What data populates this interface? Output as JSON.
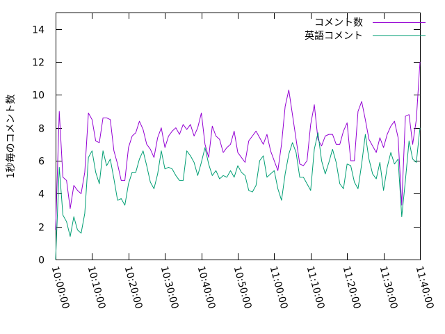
{
  "chart_data": {
    "type": "line",
    "ylabel": "1秒毎のコメント数",
    "ylim": [
      0,
      15
    ],
    "yticks": [
      0,
      2,
      4,
      6,
      8,
      10,
      12,
      14
    ],
    "xlim": [
      "10:00:00",
      "11:40:00"
    ],
    "xticks": [
      "10:00:00",
      "10:10:00",
      "10:20:00",
      "10:30:00",
      "10:40:00",
      "10:50:00",
      "11:00:00",
      "11:10:00",
      "11:20:00",
      "11:30:00",
      "11:40:00"
    ],
    "legend_position": "top-right",
    "grid": false,
    "x_interval_seconds": 60,
    "x_start": "10:00:00",
    "series": [
      {
        "name": "コメント数",
        "color": "#9400d3",
        "values": [
          1.8,
          9.0,
          5.0,
          4.8,
          3.1,
          4.5,
          4.2,
          4.0,
          5.3,
          8.9,
          8.5,
          7.2,
          7.1,
          8.6,
          8.6,
          8.5,
          6.6,
          5.8,
          4.8,
          4.8,
          6.8,
          7.5,
          7.7,
          8.4,
          7.9,
          7.0,
          6.7,
          6.2,
          7.4,
          8.0,
          6.8,
          7.5,
          7.8,
          8.0,
          7.6,
          8.2,
          7.9,
          8.2,
          7.5,
          8.0,
          8.9,
          7.0,
          6.2,
          8.1,
          7.5,
          7.3,
          6.5,
          6.8,
          7.0,
          7.8,
          6.5,
          6.2,
          5.9,
          7.2,
          7.5,
          7.8,
          7.4,
          7.0,
          7.6,
          6.6,
          6.0,
          5.4,
          7.0,
          9.3,
          10.3,
          8.8,
          7.3,
          5.8,
          5.7,
          6.0,
          8.2,
          9.4,
          7.3,
          6.9,
          7.5,
          7.6,
          7.6,
          7.0,
          7.0,
          7.8,
          8.3,
          6.0,
          6.0,
          9.0,
          9.6,
          8.5,
          7.3,
          6.9,
          6.5,
          7.4,
          6.8,
          7.6,
          8.1,
          8.4,
          7.4,
          3.3,
          8.7,
          8.8,
          7.0,
          8.5,
          12.0
        ]
      },
      {
        "name": "英語コメント",
        "color": "#009e73",
        "values": [
          0.0,
          5.6,
          2.7,
          2.3,
          1.4,
          2.6,
          1.8,
          1.6,
          2.8,
          6.2,
          6.6,
          5.3,
          4.6,
          6.6,
          5.7,
          6.1,
          4.9,
          3.6,
          3.7,
          3.3,
          4.6,
          5.3,
          5.3,
          6.1,
          6.6,
          5.7,
          4.7,
          4.3,
          5.2,
          6.6,
          5.5,
          5.6,
          5.5,
          5.1,
          4.8,
          4.8,
          6.6,
          6.3,
          5.9,
          5.1,
          5.9,
          6.8,
          5.8,
          5.1,
          5.4,
          4.9,
          5.1,
          5.0,
          5.4,
          5.0,
          5.7,
          5.3,
          5.1,
          4.2,
          4.1,
          4.5,
          6.0,
          6.3,
          5.0,
          5.2,
          5.4,
          4.3,
          3.6,
          5.2,
          6.4,
          7.1,
          6.5,
          5.0,
          5.0,
          4.6,
          4.2,
          6.7,
          7.7,
          6.0,
          5.2,
          5.9,
          6.7,
          5.9,
          4.6,
          4.3,
          5.8,
          5.7,
          4.7,
          4.3,
          5.8,
          7.6,
          6.1,
          5.2,
          4.9,
          5.9,
          4.2,
          5.6,
          6.5,
          5.8,
          6.1,
          2.6,
          4.8,
          7.2,
          6.1,
          5.9,
          8.0
        ]
      }
    ]
  }
}
